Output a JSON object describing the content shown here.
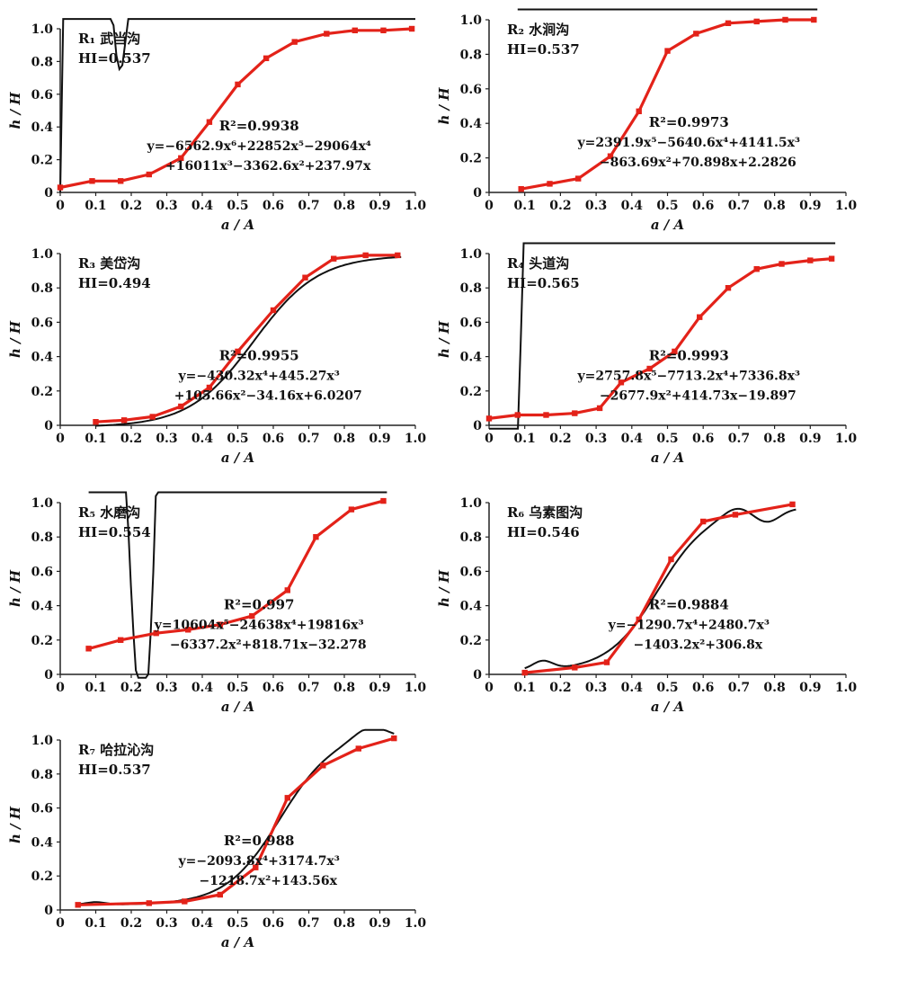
{
  "figure_title": "",
  "chart_data": [
    {
      "type": "line",
      "panel_label": "R₁ 武当沟",
      "hi_label": "HI=0.537",
      "r2_label": "R²=0.9938",
      "equation": [
        "y=−6562.9x⁶+22852x⁵−29064x⁴",
        "+16011x³−3362.6x²+237.97x"
      ],
      "xlabel": "a / A",
      "ylabel": "h / H",
      "xlim": [
        0,
        1.0
      ],
      "ylim": [
        0,
        1.0
      ],
      "x_ticks": [
        "0",
        "0.1",
        "0.2",
        "0.3",
        "0.4",
        "0.5",
        "0.6",
        "0.7",
        "0.8",
        "0.9",
        "1.0"
      ],
      "y_ticks": [
        "0",
        "0.2",
        "0.4",
        "0.6",
        "0.8",
        "1.0"
      ],
      "series": [
        {
          "role": "observed",
          "color": "#e32219",
          "x": [
            0.0,
            0.09,
            0.17,
            0.25,
            0.34,
            0.42,
            0.5,
            0.58,
            0.66,
            0.75,
            0.83,
            0.91,
            0.99
          ],
          "y": [
            0.03,
            0.07,
            0.07,
            0.11,
            0.21,
            0.43,
            0.66,
            0.82,
            0.92,
            0.97,
            0.99,
            0.99,
            1.0
          ]
        },
        {
          "role": "fit",
          "color": "#111111",
          "coeffs": [
            0,
            237.97,
            -3362.6,
            16011,
            -29064,
            22852,
            -6562.9
          ],
          "domain": [
            0,
            1.0
          ]
        }
      ]
    },
    {
      "type": "line",
      "panel_label": "R₂ 水涧沟",
      "hi_label": "HI=0.537",
      "r2_label": "R²=0.9973",
      "equation": [
        "y=2391.9x⁵−5640.6x⁴+4141.5x³",
        "−863.69x²+70.898x+2.2826"
      ],
      "xlabel": "a / A",
      "ylabel": "h / H",
      "xlim": [
        0,
        1.0
      ],
      "ylim": [
        0,
        1.0
      ],
      "x_ticks": [
        "0",
        "0.1",
        "0.2",
        "0.3",
        "0.4",
        "0.5",
        "0.6",
        "0.7",
        "0.8",
        "0.9",
        "1.0"
      ],
      "y_ticks": [
        "0",
        "0.2",
        "0.4",
        "0.6",
        "0.8",
        "1.0"
      ],
      "series": [
        {
          "role": "observed",
          "color": "#e32219",
          "x": [
            0.09,
            0.17,
            0.25,
            0.34,
            0.42,
            0.5,
            0.58,
            0.67,
            0.75,
            0.83,
            0.91
          ],
          "y": [
            0.02,
            0.05,
            0.08,
            0.21,
            0.47,
            0.82,
            0.92,
            0.98,
            0.99,
            1.0,
            1.0
          ]
        },
        {
          "role": "fit",
          "color": "#111111",
          "coeffs": [
            2.2826,
            70.898,
            -863.69,
            4141.5,
            -5640.6,
            2391.9
          ],
          "domain": [
            0.08,
            0.92
          ]
        }
      ]
    },
    {
      "type": "line",
      "panel_label": "R₃ 美岱沟",
      "hi_label": "HI=0.494",
      "r2_label": "R²=0.9955",
      "equation": [
        "y=−430.32x⁴+445.27x³",
        "+105.66x²−34.16x+6.0207"
      ],
      "xlabel": "a / A",
      "ylabel": "h / H",
      "xlim": [
        0,
        1.0
      ],
      "ylim": [
        0,
        1.0
      ],
      "x_ticks": [
        "0",
        "0.1",
        "0.2",
        "0.3",
        "0.4",
        "0.5",
        "0.6",
        "0.7",
        "0.8",
        "0.9",
        "1.0"
      ],
      "y_ticks": [
        "0",
        "0.2",
        "0.4",
        "0.6",
        "0.8",
        "1.0"
      ],
      "series": [
        {
          "role": "observed",
          "color": "#e32219",
          "x": [
            0.1,
            0.18,
            0.26,
            0.34,
            0.42,
            0.5,
            0.6,
            0.69,
            0.77,
            0.86,
            0.95
          ],
          "y": [
            0.02,
            0.03,
            0.05,
            0.11,
            0.22,
            0.43,
            0.67,
            0.86,
            0.97,
            0.99,
            0.99
          ]
        },
        {
          "role": "fit",
          "color": "#111111",
          "shape": "sigmoid",
          "domain": [
            0.1,
            0.96
          ]
        }
      ]
    },
    {
      "type": "line",
      "panel_label": "R₄ 头道沟",
      "hi_label": "HI=0.565",
      "r2_label": "R²=0.9993",
      "equation": [
        "y=2757.8x⁵−7713.2x⁴+7336.8x³",
        "−2677.9x²+414.73x−19.897"
      ],
      "xlabel": "a / A",
      "ylabel": "h / H",
      "xlim": [
        0,
        1.0
      ],
      "ylim": [
        0,
        1.0
      ],
      "x_ticks": [
        "0",
        "0.1",
        "0.2",
        "0.3",
        "0.4",
        "0.5",
        "0.6",
        "0.7",
        "0.8",
        "0.9",
        "1.0"
      ],
      "y_ticks": [
        "0",
        "0.2",
        "0.4",
        "0.6",
        "0.8",
        "1.0"
      ],
      "series": [
        {
          "role": "observed",
          "color": "#e32219",
          "x": [
            0.0,
            0.08,
            0.16,
            0.24,
            0.31,
            0.37,
            0.45,
            0.52,
            0.59,
            0.67,
            0.75,
            0.82,
            0.9,
            0.96
          ],
          "y": [
            0.04,
            0.06,
            0.06,
            0.07,
            0.1,
            0.25,
            0.33,
            0.43,
            0.63,
            0.8,
            0.91,
            0.94,
            0.96,
            0.97
          ]
        },
        {
          "role": "fit",
          "color": "#111111",
          "coeffs": [
            -19.897,
            414.73,
            -2677.9,
            7336.8,
            -7713.2,
            2757.8
          ],
          "domain": [
            0,
            0.97
          ]
        }
      ]
    },
    {
      "type": "line",
      "panel_label": "R₅ 水磨沟",
      "hi_label": "HI=0.554",
      "r2_label": "R²=0.997",
      "equation": [
        "y=10604x⁵−24638x⁴+19816x³",
        "−6337.2x²+818.71x−32.278"
      ],
      "xlabel": "a / A",
      "ylabel": "h / H",
      "xlim": [
        0,
        1.0
      ],
      "ylim": [
        0,
        1.0
      ],
      "x_ticks": [
        "0",
        "0.1",
        "0.2",
        "0.3",
        "0.4",
        "0.5",
        "0.6",
        "0.7",
        "0.8",
        "0.9",
        "1.0"
      ],
      "y_ticks": [
        "0",
        "0.2",
        "0.4",
        "0.6",
        "0.8",
        "1.0"
      ],
      "series": [
        {
          "role": "observed",
          "color": "#e32219",
          "x": [
            0.08,
            0.17,
            0.27,
            0.36,
            0.45,
            0.54,
            0.64,
            0.72,
            0.82,
            0.91
          ],
          "y": [
            0.15,
            0.2,
            0.24,
            0.26,
            0.29,
            0.34,
            0.49,
            0.8,
            0.96,
            1.01
          ]
        },
        {
          "role": "fit",
          "color": "#111111",
          "coeffs": [
            -32.278,
            818.71,
            -6337.2,
            19816,
            -24638,
            10604
          ],
          "domain": [
            0.08,
            0.92
          ]
        }
      ]
    },
    {
      "type": "line",
      "panel_label": "R₆ 乌素图沟",
      "hi_label": "HI=0.546",
      "r2_label": "R²=0.9884",
      "equation": [
        "y=−1290.7x⁴+2480.7x³",
        "−1403.2x²+306.8x"
      ],
      "xlabel": "a / A",
      "ylabel": "h / H",
      "xlim": [
        0,
        1.0
      ],
      "ylim": [
        0,
        1.0
      ],
      "x_ticks": [
        "0",
        "0.1",
        "0.2",
        "0.3",
        "0.4",
        "0.5",
        "0.6",
        "0.7",
        "0.8",
        "0.9",
        "1.0"
      ],
      "y_ticks": [
        "0",
        "0.2",
        "0.4",
        "0.6",
        "0.8",
        "1.0"
      ],
      "series": [
        {
          "role": "observed",
          "color": "#e32219",
          "x": [
            0.1,
            0.24,
            0.33,
            0.42,
            0.51,
            0.6,
            0.69,
            0.85
          ],
          "y": [
            0.01,
            0.04,
            0.07,
            0.32,
            0.67,
            0.89,
            0.93,
            0.99
          ]
        },
        {
          "role": "fit",
          "color": "#111111",
          "shape": "wiggle",
          "domain": [
            0.1,
            0.86
          ]
        }
      ]
    },
    {
      "type": "line",
      "panel_label": "R₇ 哈拉沁沟",
      "hi_label": "HI=0.537",
      "r2_label": "R²=0.988",
      "equation": [
        "y=−2093.8x⁴+3174.7x³",
        "−1218.7x²+143.56x"
      ],
      "xlabel": "a / A",
      "ylabel": "h / H",
      "xlim": [
        0,
        1.0
      ],
      "ylim": [
        0,
        1.0
      ],
      "x_ticks": [
        "0",
        "0.1",
        "0.2",
        "0.3",
        "0.4",
        "0.5",
        "0.6",
        "0.7",
        "0.8",
        "0.9",
        "1.0"
      ],
      "y_ticks": [
        "0",
        "0.2",
        "0.4",
        "0.6",
        "0.8",
        "1.0"
      ],
      "series": [
        {
          "role": "observed",
          "color": "#e32219",
          "x": [
            0.05,
            0.25,
            0.35,
            0.45,
            0.55,
            0.64,
            0.74,
            0.84,
            0.94
          ],
          "y": [
            0.03,
            0.04,
            0.05,
            0.09,
            0.25,
            0.66,
            0.85,
            0.95,
            1.01
          ]
        },
        {
          "role": "fit",
          "color": "#111111",
          "shape": "overshoot",
          "domain": [
            0.05,
            0.94
          ]
        }
      ]
    }
  ]
}
